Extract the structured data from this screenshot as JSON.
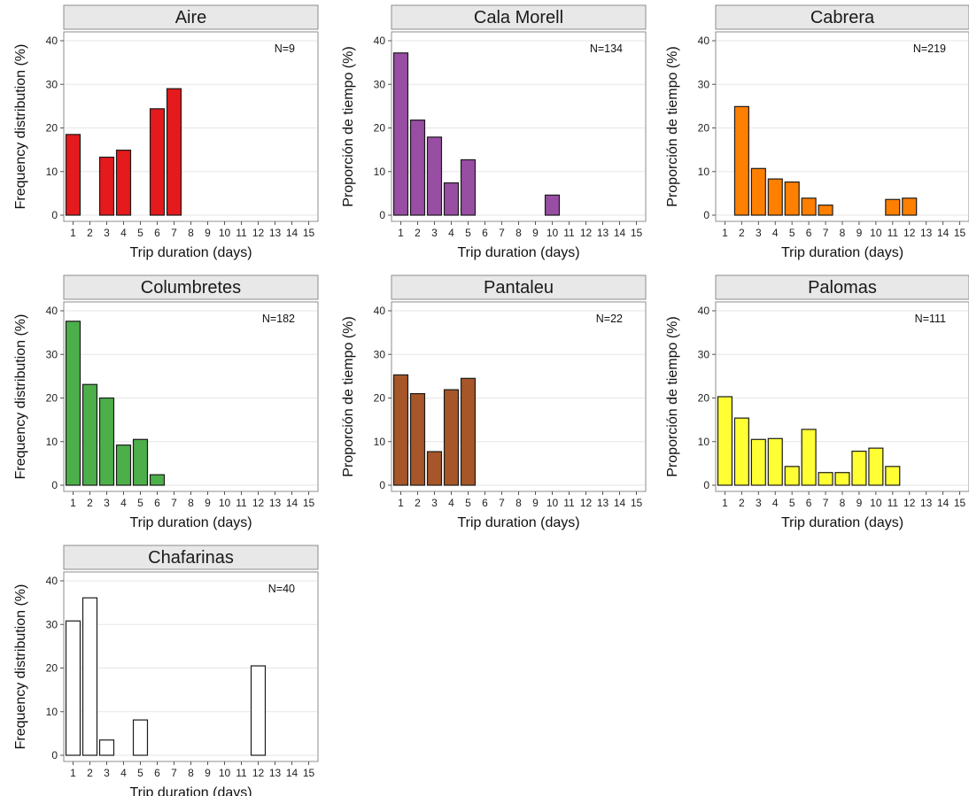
{
  "chart_data": [
    {
      "type": "bar",
      "title": "Aire",
      "annotation": "N=9",
      "xlabel": "Trip duration (days)",
      "ylabel": "Frequency distribution (%)",
      "categories": [
        "1",
        "2",
        "3",
        "4",
        "5",
        "6",
        "7",
        "8",
        "9",
        "10",
        "11",
        "12",
        "13",
        "14",
        "15"
      ],
      "values": [
        18.5,
        0,
        13.3,
        14.9,
        0,
        24.4,
        29,
        0,
        0,
        0,
        0,
        0,
        0,
        0,
        0
      ],
      "ylim": [
        0,
        40
      ],
      "yticks": [
        0,
        10,
        20,
        30,
        40
      ],
      "color": "#e41a1c",
      "grid": true
    },
    {
      "type": "bar",
      "title": "Cala Morell",
      "annotation": "N=134",
      "xlabel": "Trip duration (days)",
      "ylabel": "Proporción de tiempo (%)",
      "categories": [
        "1",
        "2",
        "3",
        "4",
        "5",
        "6",
        "7",
        "8",
        "9",
        "10",
        "11",
        "12",
        "13",
        "14",
        "15"
      ],
      "values": [
        37.2,
        21.8,
        17.9,
        7.4,
        12.7,
        0,
        0,
        0,
        0,
        4.6,
        0,
        0,
        0,
        0,
        0
      ],
      "ylim": [
        0,
        40
      ],
      "yticks": [
        0,
        10,
        20,
        30,
        40
      ],
      "color": "#984ea3",
      "grid": true
    },
    {
      "type": "bar",
      "title": "Cabrera",
      "annotation": "N=219",
      "xlabel": "Trip duration (days)",
      "ylabel": "Proporción de tiempo (%)",
      "categories": [
        "1",
        "2",
        "3",
        "4",
        "5",
        "6",
        "7",
        "8",
        "9",
        "10",
        "11",
        "12",
        "13",
        "14",
        "15"
      ],
      "values": [
        0,
        24.9,
        10.7,
        8.3,
        7.6,
        3.9,
        2.3,
        0,
        0,
        0,
        3.6,
        3.9,
        0,
        0,
        0
      ],
      "ylim": [
        0,
        40
      ],
      "yticks": [
        0,
        10,
        20,
        30,
        40
      ],
      "color": "#ff7f00",
      "grid": true
    },
    {
      "type": "bar",
      "title": "Columbretes",
      "annotation": "N=182",
      "xlabel": "Trip duration (days)",
      "ylabel": "Frequency distribution (%)",
      "categories": [
        "1",
        "2",
        "3",
        "4",
        "5",
        "6",
        "7",
        "8",
        "9",
        "10",
        "11",
        "12",
        "13",
        "14",
        "15"
      ],
      "values": [
        37.6,
        23.1,
        20,
        9.2,
        10.5,
        2.4,
        0,
        0,
        0,
        0,
        0,
        0,
        0,
        0,
        0
      ],
      "ylim": [
        0,
        40
      ],
      "yticks": [
        0,
        10,
        20,
        30,
        40
      ],
      "color": "#4daf4a",
      "grid": true
    },
    {
      "type": "bar",
      "title": "Pantaleu",
      "annotation": "N=22",
      "xlabel": "Trip duration (days)",
      "ylabel": "Proporción de tiempo (%)",
      "categories": [
        "1",
        "2",
        "3",
        "4",
        "5",
        "6",
        "7",
        "8",
        "9",
        "10",
        "11",
        "12",
        "13",
        "14",
        "15"
      ],
      "values": [
        25.3,
        21,
        7.7,
        21.9,
        24.5,
        0,
        0,
        0,
        0,
        0,
        0,
        0,
        0,
        0,
        0
      ],
      "ylim": [
        0,
        40
      ],
      "yticks": [
        0,
        10,
        20,
        30,
        40
      ],
      "color": "#a65628",
      "grid": true
    },
    {
      "type": "bar",
      "title": "Palomas",
      "annotation": "N=111",
      "xlabel": "Trip duration (days)",
      "ylabel": "Proporción de tiempo (%)",
      "categories": [
        "1",
        "2",
        "3",
        "4",
        "5",
        "6",
        "7",
        "8",
        "9",
        "10",
        "11",
        "12",
        "13",
        "14",
        "15"
      ],
      "values": [
        20.3,
        15.4,
        10.5,
        10.7,
        4.3,
        12.8,
        2.9,
        2.9,
        7.8,
        8.5,
        4.3,
        0,
        0,
        0,
        0
      ],
      "ylim": [
        0,
        40
      ],
      "yticks": [
        0,
        10,
        20,
        30,
        40
      ],
      "color": "#ffff33",
      "grid": true
    },
    {
      "type": "bar",
      "title": "Chafarinas",
      "annotation": "N=40",
      "xlabel": "Trip duration (days)",
      "ylabel": "Frequency distribution (%)",
      "categories": [
        "1",
        "2",
        "3",
        "4",
        "5",
        "6",
        "7",
        "8",
        "9",
        "10",
        "11",
        "12",
        "13",
        "14",
        "15"
      ],
      "values": [
        30.8,
        36.1,
        3.5,
        0,
        8.1,
        0,
        0,
        0,
        0,
        0,
        0,
        20.5,
        0,
        0,
        0
      ],
      "ylim": [
        0,
        40
      ],
      "yticks": [
        0,
        10,
        20,
        30,
        40
      ],
      "color": "#ffffff",
      "grid": true
    }
  ]
}
